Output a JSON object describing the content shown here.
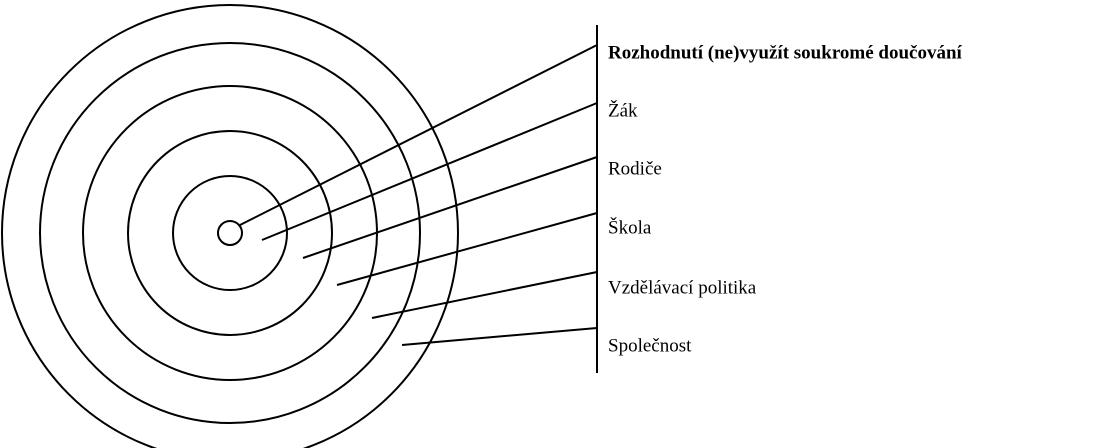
{
  "title": "Rozhodnutí (ne)využít soukromé doučování",
  "layers": [
    {
      "label": "Žák"
    },
    {
      "label": "Rodiče"
    },
    {
      "label": "Škola"
    },
    {
      "label": "Vzdělávací politika"
    },
    {
      "label": "Společnost"
    }
  ]
}
